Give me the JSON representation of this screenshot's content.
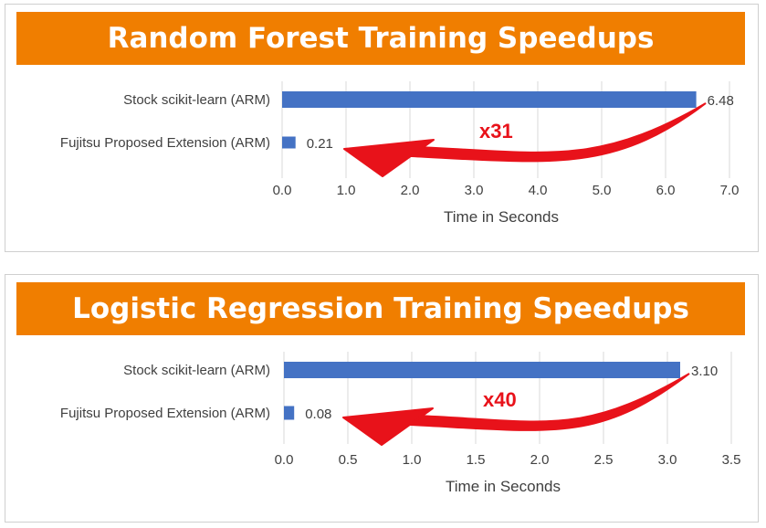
{
  "chart_data": [
    {
      "type": "bar",
      "orientation": "horizontal",
      "title": "Random Forest Training Speedups",
      "categories": [
        "Stock scikit-learn (ARM)",
        "Fujitsu Proposed Extension (ARM)"
      ],
      "values": [
        6.48,
        0.21
      ],
      "value_labels": [
        "6.48",
        "0.21"
      ],
      "xlabel": "Time in Seconds",
      "xlim": [
        0,
        7
      ],
      "xticks": [
        0,
        1,
        2,
        3,
        4,
        5,
        6,
        7
      ],
      "xtick_labels": [
        "0.0",
        "1.0",
        "2.0",
        "3.0",
        "4.0",
        "5.0",
        "6.0",
        "7.0"
      ],
      "grid": "vertical",
      "annotation": "x31",
      "colors": {
        "bar": "#4472c4",
        "banner": "#f07e00",
        "arrow": "#e8121a"
      }
    },
    {
      "type": "bar",
      "orientation": "horizontal",
      "title": "Logistic Regression Training Speedups",
      "categories": [
        "Stock scikit-learn (ARM)",
        "Fujitsu Proposed Extension (ARM)"
      ],
      "values": [
        3.1,
        0.08
      ],
      "value_labels": [
        "3.10",
        "0.08"
      ],
      "xlabel": "Time in Seconds",
      "xlim": [
        0,
        3.5
      ],
      "xticks": [
        0,
        0.5,
        1,
        1.5,
        2,
        2.5,
        3,
        3.5
      ],
      "xtick_labels": [
        "0.0",
        "0.5",
        "1.0",
        "1.5",
        "2.0",
        "2.5",
        "3.0",
        "3.5"
      ],
      "grid": "vertical",
      "annotation": "x40",
      "colors": {
        "bar": "#4472c4",
        "banner": "#f07e00",
        "arrow": "#e8121a"
      }
    }
  ]
}
